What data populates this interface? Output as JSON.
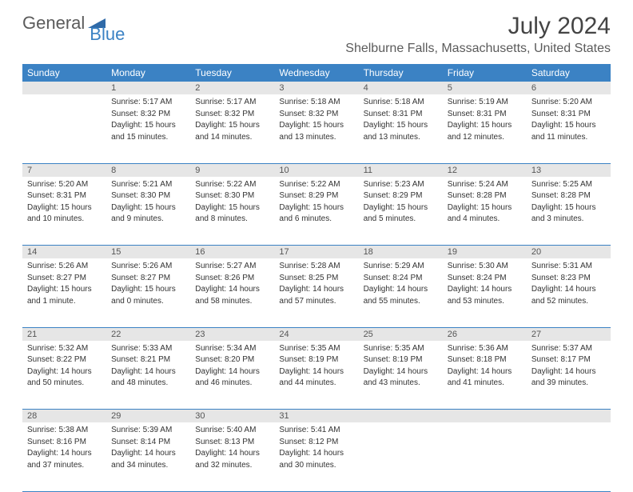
{
  "logo": {
    "text_general": "General",
    "text_blue": "Blue",
    "shape_color": "#2f6aa8"
  },
  "title": {
    "month": "July 2024",
    "location": "Shelburne Falls, Massachusetts, United States"
  },
  "colors": {
    "header_bg": "#3b82c4",
    "header_text": "#ffffff",
    "daynum_bg": "#e6e6e6",
    "daynum_text": "#555555",
    "body_text": "#333333",
    "rule": "#3b82c4"
  },
  "day_headers": [
    "Sunday",
    "Monday",
    "Tuesday",
    "Wednesday",
    "Thursday",
    "Friday",
    "Saturday"
  ],
  "weeks": [
    {
      "nums": [
        "",
        "1",
        "2",
        "3",
        "4",
        "5",
        "6"
      ],
      "cells": [
        null,
        {
          "sunrise": "Sunrise: 5:17 AM",
          "sunset": "Sunset: 8:32 PM",
          "day1": "Daylight: 15 hours",
          "day2": "and 15 minutes."
        },
        {
          "sunrise": "Sunrise: 5:17 AM",
          "sunset": "Sunset: 8:32 PM",
          "day1": "Daylight: 15 hours",
          "day2": "and 14 minutes."
        },
        {
          "sunrise": "Sunrise: 5:18 AM",
          "sunset": "Sunset: 8:32 PM",
          "day1": "Daylight: 15 hours",
          "day2": "and 13 minutes."
        },
        {
          "sunrise": "Sunrise: 5:18 AM",
          "sunset": "Sunset: 8:31 PM",
          "day1": "Daylight: 15 hours",
          "day2": "and 13 minutes."
        },
        {
          "sunrise": "Sunrise: 5:19 AM",
          "sunset": "Sunset: 8:31 PM",
          "day1": "Daylight: 15 hours",
          "day2": "and 12 minutes."
        },
        {
          "sunrise": "Sunrise: 5:20 AM",
          "sunset": "Sunset: 8:31 PM",
          "day1": "Daylight: 15 hours",
          "day2": "and 11 minutes."
        }
      ]
    },
    {
      "nums": [
        "7",
        "8",
        "9",
        "10",
        "11",
        "12",
        "13"
      ],
      "cells": [
        {
          "sunrise": "Sunrise: 5:20 AM",
          "sunset": "Sunset: 8:31 PM",
          "day1": "Daylight: 15 hours",
          "day2": "and 10 minutes."
        },
        {
          "sunrise": "Sunrise: 5:21 AM",
          "sunset": "Sunset: 8:30 PM",
          "day1": "Daylight: 15 hours",
          "day2": "and 9 minutes."
        },
        {
          "sunrise": "Sunrise: 5:22 AM",
          "sunset": "Sunset: 8:30 PM",
          "day1": "Daylight: 15 hours",
          "day2": "and 8 minutes."
        },
        {
          "sunrise": "Sunrise: 5:22 AM",
          "sunset": "Sunset: 8:29 PM",
          "day1": "Daylight: 15 hours",
          "day2": "and 6 minutes."
        },
        {
          "sunrise": "Sunrise: 5:23 AM",
          "sunset": "Sunset: 8:29 PM",
          "day1": "Daylight: 15 hours",
          "day2": "and 5 minutes."
        },
        {
          "sunrise": "Sunrise: 5:24 AM",
          "sunset": "Sunset: 8:28 PM",
          "day1": "Daylight: 15 hours",
          "day2": "and 4 minutes."
        },
        {
          "sunrise": "Sunrise: 5:25 AM",
          "sunset": "Sunset: 8:28 PM",
          "day1": "Daylight: 15 hours",
          "day2": "and 3 minutes."
        }
      ]
    },
    {
      "nums": [
        "14",
        "15",
        "16",
        "17",
        "18",
        "19",
        "20"
      ],
      "cells": [
        {
          "sunrise": "Sunrise: 5:26 AM",
          "sunset": "Sunset: 8:27 PM",
          "day1": "Daylight: 15 hours",
          "day2": "and 1 minute."
        },
        {
          "sunrise": "Sunrise: 5:26 AM",
          "sunset": "Sunset: 8:27 PM",
          "day1": "Daylight: 15 hours",
          "day2": "and 0 minutes."
        },
        {
          "sunrise": "Sunrise: 5:27 AM",
          "sunset": "Sunset: 8:26 PM",
          "day1": "Daylight: 14 hours",
          "day2": "and 58 minutes."
        },
        {
          "sunrise": "Sunrise: 5:28 AM",
          "sunset": "Sunset: 8:25 PM",
          "day1": "Daylight: 14 hours",
          "day2": "and 57 minutes."
        },
        {
          "sunrise": "Sunrise: 5:29 AM",
          "sunset": "Sunset: 8:24 PM",
          "day1": "Daylight: 14 hours",
          "day2": "and 55 minutes."
        },
        {
          "sunrise": "Sunrise: 5:30 AM",
          "sunset": "Sunset: 8:24 PM",
          "day1": "Daylight: 14 hours",
          "day2": "and 53 minutes."
        },
        {
          "sunrise": "Sunrise: 5:31 AM",
          "sunset": "Sunset: 8:23 PM",
          "day1": "Daylight: 14 hours",
          "day2": "and 52 minutes."
        }
      ]
    },
    {
      "nums": [
        "21",
        "22",
        "23",
        "24",
        "25",
        "26",
        "27"
      ],
      "cells": [
        {
          "sunrise": "Sunrise: 5:32 AM",
          "sunset": "Sunset: 8:22 PM",
          "day1": "Daylight: 14 hours",
          "day2": "and 50 minutes."
        },
        {
          "sunrise": "Sunrise: 5:33 AM",
          "sunset": "Sunset: 8:21 PM",
          "day1": "Daylight: 14 hours",
          "day2": "and 48 minutes."
        },
        {
          "sunrise": "Sunrise: 5:34 AM",
          "sunset": "Sunset: 8:20 PM",
          "day1": "Daylight: 14 hours",
          "day2": "and 46 minutes."
        },
        {
          "sunrise": "Sunrise: 5:35 AM",
          "sunset": "Sunset: 8:19 PM",
          "day1": "Daylight: 14 hours",
          "day2": "and 44 minutes."
        },
        {
          "sunrise": "Sunrise: 5:35 AM",
          "sunset": "Sunset: 8:19 PM",
          "day1": "Daylight: 14 hours",
          "day2": "and 43 minutes."
        },
        {
          "sunrise": "Sunrise: 5:36 AM",
          "sunset": "Sunset: 8:18 PM",
          "day1": "Daylight: 14 hours",
          "day2": "and 41 minutes."
        },
        {
          "sunrise": "Sunrise: 5:37 AM",
          "sunset": "Sunset: 8:17 PM",
          "day1": "Daylight: 14 hours",
          "day2": "and 39 minutes."
        }
      ]
    },
    {
      "nums": [
        "28",
        "29",
        "30",
        "31",
        "",
        "",
        ""
      ],
      "cells": [
        {
          "sunrise": "Sunrise: 5:38 AM",
          "sunset": "Sunset: 8:16 PM",
          "day1": "Daylight: 14 hours",
          "day2": "and 37 minutes."
        },
        {
          "sunrise": "Sunrise: 5:39 AM",
          "sunset": "Sunset: 8:14 PM",
          "day1": "Daylight: 14 hours",
          "day2": "and 34 minutes."
        },
        {
          "sunrise": "Sunrise: 5:40 AM",
          "sunset": "Sunset: 8:13 PM",
          "day1": "Daylight: 14 hours",
          "day2": "and 32 minutes."
        },
        {
          "sunrise": "Sunrise: 5:41 AM",
          "sunset": "Sunset: 8:12 PM",
          "day1": "Daylight: 14 hours",
          "day2": "and 30 minutes."
        },
        null,
        null,
        null
      ]
    }
  ]
}
